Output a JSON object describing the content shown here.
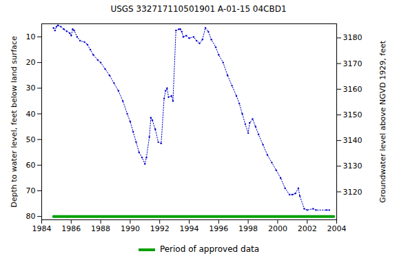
{
  "chart_data": {
    "type": "line",
    "title": "USGS 332717110501901 A-01-15 04CBD1",
    "ylabel": "Depth to water level, feet below land surface",
    "y2label": "Groundwater level above NGVD 1929, feet",
    "xlim": [
      1984,
      2004
    ],
    "xticks": [
      1984,
      1986,
      1988,
      1990,
      1992,
      1994,
      1996,
      1998,
      2000,
      2002,
      2004
    ],
    "ylim": [
      4.9,
      81.3
    ],
    "yticks": [
      10,
      20,
      30,
      40,
      50,
      60,
      70,
      80
    ],
    "y2lim": [
      3109.1,
      3185.5
    ],
    "y2ticks": [
      3120,
      3130,
      3140,
      3150,
      3160,
      3170,
      3180
    ],
    "legend": "bottom",
    "series": [
      {
        "type": "line",
        "color": "#0000cc",
        "marker": "dot",
        "line_style": "dotted",
        "x": [
          1984.8,
          1984.9,
          1985.0,
          1985.1,
          1985.3,
          1985.5,
          1985.7,
          1985.9,
          1986.0,
          1986.1,
          1986.2,
          1986.4,
          1986.6,
          1986.9,
          1987.1,
          1987.3,
          1987.5,
          1987.8,
          1988.0,
          1988.3,
          1988.6,
          1988.9,
          1989.2,
          1989.5,
          1989.8,
          1990.0,
          1990.2,
          1990.4,
          1990.6,
          1990.8,
          1991.0,
          1991.1,
          1991.3,
          1991.4,
          1991.5,
          1991.7,
          1991.9,
          1992.1,
          1992.3,
          1992.4,
          1992.5,
          1992.6,
          1992.8,
          1992.9,
          1993.1,
          1993.3,
          1993.4,
          1993.5,
          1993.6,
          1993.8,
          1994.0,
          1994.3,
          1994.5,
          1994.7,
          1994.9,
          1995.1,
          1995.3,
          1995.5,
          1995.8,
          1996.0,
          1996.3,
          1996.6,
          1996.9,
          1997.2,
          1997.4,
          1997.6,
          1997.8,
          1998.0,
          1998.1,
          1998.3,
          1998.5,
          1998.7,
          1999.0,
          1999.3,
          1999.6,
          1999.9,
          2000.2,
          2000.5,
          2000.8,
          2001.0,
          2001.2,
          2001.4,
          2001.5,
          2001.8,
          2002.0,
          2002.4,
          2002.6,
          2003.3,
          2003.5
        ],
        "values": [
          6.5,
          7.5,
          6,
          5.5,
          6,
          7,
          7.8,
          8.5,
          9.5,
          7,
          7.5,
          10,
          11.5,
          12,
          13,
          15,
          17,
          19,
          20,
          22.5,
          25,
          28,
          31,
          35,
          40,
          43,
          47,
          51,
          55,
          57,
          59.5,
          57,
          49,
          41.5,
          42.5,
          46,
          51,
          51.5,
          34,
          31,
          30,
          33.5,
          33,
          35,
          7.5,
          7,
          7,
          8,
          10,
          9.5,
          10.5,
          10,
          11.5,
          12.5,
          11,
          6.5,
          8,
          11,
          14,
          17,
          20,
          25,
          29,
          33,
          36,
          40,
          44,
          47.5,
          43.5,
          42,
          45,
          48,
          52,
          56,
          59,
          62,
          65,
          69,
          71.5,
          71.5,
          71,
          69,
          72,
          77,
          77.5,
          77,
          77.5,
          77.5,
          77.5
        ]
      },
      {
        "type": "line",
        "name": "Period of approved data",
        "color": "#00a000",
        "x": [
          1984.8,
          2003.8
        ],
        "values": [
          80,
          80
        ]
      }
    ]
  }
}
